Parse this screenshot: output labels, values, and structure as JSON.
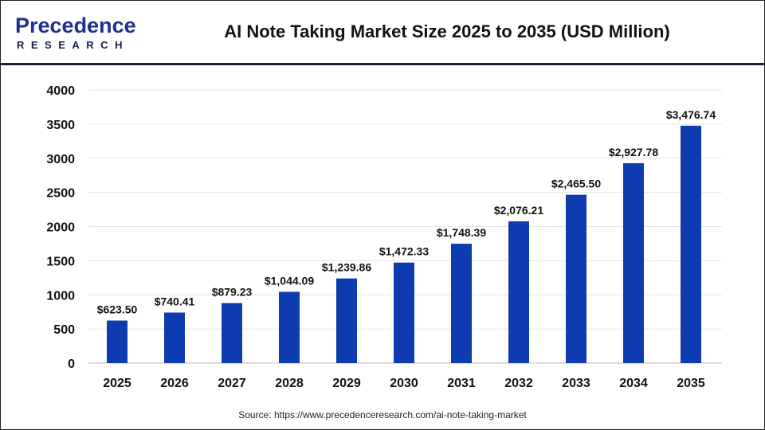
{
  "header": {
    "logo_top": "Precedence",
    "logo_bottom": "RESEARCH",
    "title": "AI Note Taking Market Size 2025 to 2035 (USD Million)"
  },
  "source": "Source: https://www.precedenceresearch.com/ai-note-taking-market",
  "chart_data": {
    "type": "bar",
    "title": "AI Note Taking Market Size 2025 to 2035 (USD Million)",
    "xlabel": "",
    "ylabel": "",
    "categories": [
      "2025",
      "2026",
      "2027",
      "2028",
      "2029",
      "2030",
      "2031",
      "2032",
      "2033",
      "2034",
      "2035"
    ],
    "values": [
      623.5,
      740.41,
      879.23,
      1044.09,
      1239.86,
      1472.33,
      1748.39,
      2076.21,
      2465.5,
      2927.78,
      3476.74
    ],
    "labels": [
      "$623.50",
      "$740.41",
      "$879.23",
      "$1,044.09",
      "$1,239.86",
      "$1,472.33",
      "$1,748.39",
      "$2,076.21",
      "$2,465.50",
      "$2,927.78",
      "$3,476.74"
    ],
    "ylim": [
      0,
      4000
    ],
    "yticks": [
      "0",
      "500",
      "1000",
      "1500",
      "2000",
      "2500",
      "3000",
      "3500",
      "4000"
    ],
    "grid": true,
    "bar_color": "#0f3bb0"
  }
}
